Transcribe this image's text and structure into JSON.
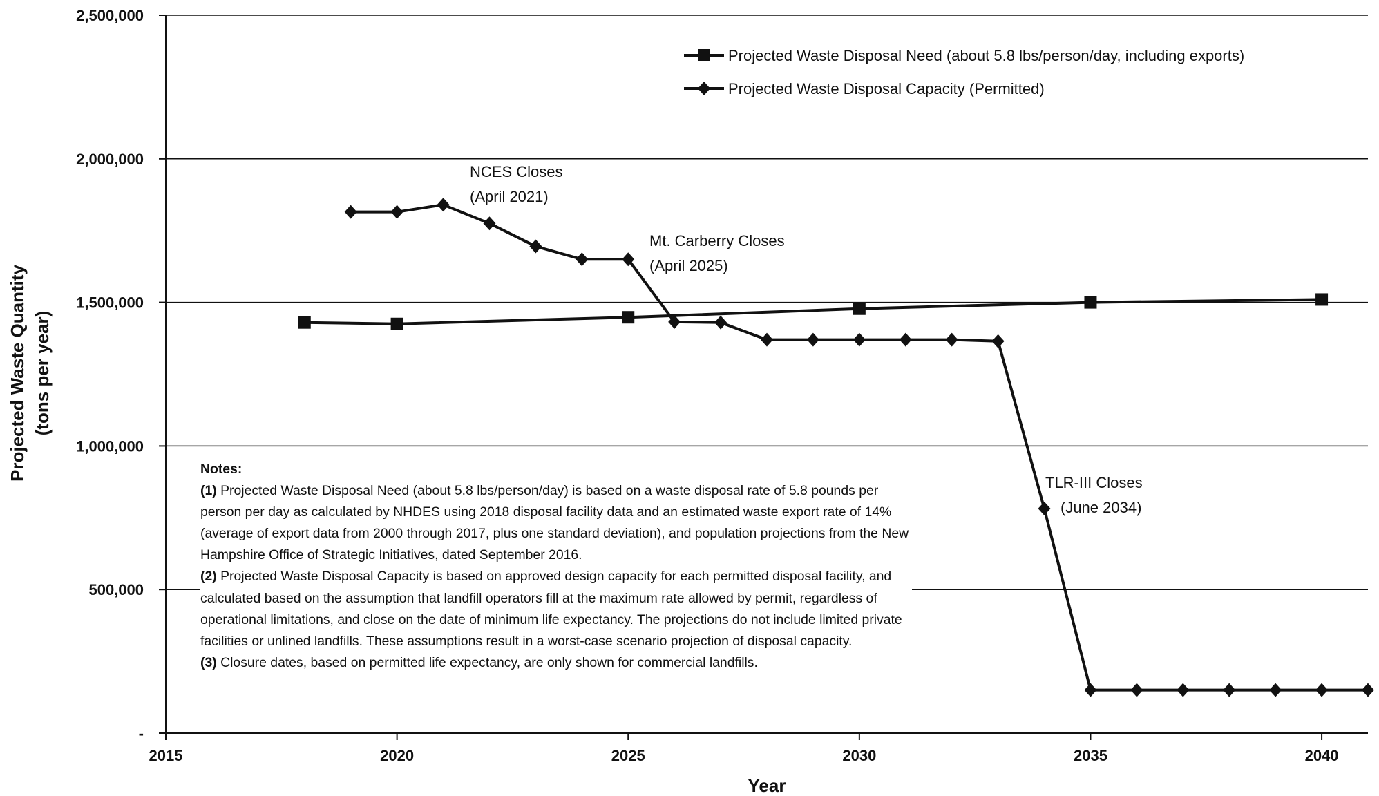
{
  "chart_data": {
    "type": "line",
    "xlabel": "Year",
    "ylabel": "Projected Waste Quantity (tons per year)",
    "ylabel_lines": [
      "Projected Waste Quantity",
      "(tons per year)"
    ],
    "xlim": [
      2015,
      2041
    ],
    "ylim": [
      0,
      2500000
    ],
    "x_ticks": [
      2015,
      2020,
      2025,
      2030,
      2035,
      2040
    ],
    "x_tick_labels": [
      "2015",
      "2020",
      "2025",
      "2030",
      "2035",
      "2040"
    ],
    "y_ticks": [
      0,
      500000,
      1000000,
      1500000,
      2000000,
      2500000
    ],
    "y_tick_labels": [
      "-",
      "500,000",
      "1,000,000",
      "1,500,000",
      "2,000,000",
      "2,500,000"
    ],
    "grid": "horizontal",
    "legend_position": "top-right",
    "series": [
      {
        "name": "Projected Waste Disposal Need (about 5.8 lbs/person/day, including exports)",
        "marker": "square",
        "color": "#111111",
        "x": [
          2018,
          2020,
          2025,
          2030,
          2035,
          2040
        ],
        "y": [
          1430000,
          1425000,
          1448000,
          1478000,
          1500000,
          1510000
        ]
      },
      {
        "name": "Projected Waste Disposal Capacity (Permitted)",
        "marker": "diamond",
        "color": "#111111",
        "x": [
          2019,
          2020,
          2021,
          2022,
          2023,
          2024,
          2025,
          2026,
          2027,
          2028,
          2029,
          2030,
          2031,
          2032,
          2033,
          2034,
          2035,
          2036,
          2037,
          2038,
          2039,
          2040,
          2041
        ],
        "y": [
          1815000,
          1815000,
          1840000,
          1775000,
          1695000,
          1650000,
          1650000,
          1432000,
          1430000,
          1370000,
          1370000,
          1370000,
          1370000,
          1370000,
          1365000,
          782000,
          150000,
          150000,
          150000,
          150000,
          150000,
          150000,
          150000
        ]
      }
    ],
    "annotations": [
      {
        "lines": [
          "NCES Closes",
          "(April 2021)"
        ]
      },
      {
        "lines": [
          "Mt. Carberry Closes",
          "(April 2025)"
        ]
      },
      {
        "lines": [
          "TLR-III Closes",
          "(June 2034)"
        ]
      }
    ]
  },
  "notes": {
    "title": "Notes:",
    "items": [
      {
        "num": "(1)",
        "text": "Projected Waste Disposal Need (about 5.8 lbs/person/day) is based on a waste disposal rate of 5.8 pounds per person per day as calculated by NHDES using 2018 disposal facility data and an estimated waste export rate of 14% (average of export data from 2000 through 2017, plus one standard deviation), and population projections from the New Hampshire Office of Strategic Initiatives, dated September 2016."
      },
      {
        "num": "(2)",
        "text": "Projected Waste Disposal Capacity is based on approved design capacity for each permitted disposal facility, and calculated based on the assumption that landfill operators fill at the maximum rate allowed by permit, regardless of operational limitations, and close on the date of minimum life expectancy. The projections do not include limited private facilities or unlined landfills. These assumptions result in a worst-case scenario projection of disposal capacity."
      },
      {
        "num": "(3)",
        "text": "Closure dates, based on permitted life expectancy, are only shown for commercial landfills."
      }
    ]
  }
}
